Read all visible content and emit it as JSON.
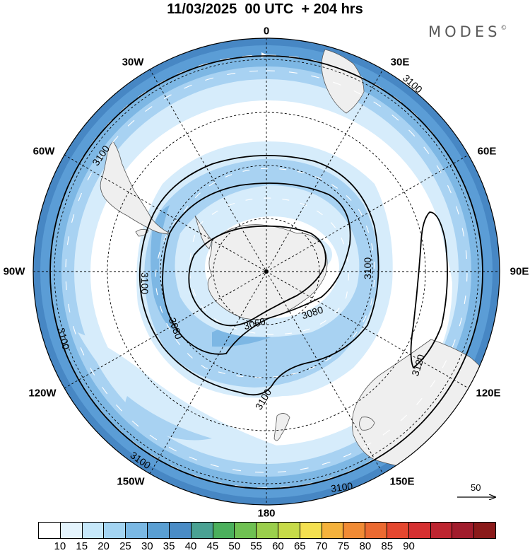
{
  "title": "11/03/2025  00 UTC  + 204 hrs",
  "brand": {
    "text": "MODES",
    "mark": "©"
  },
  "longitude_labels": [
    "0",
    "30E",
    "60E",
    "90E",
    "120E",
    "150E",
    "180",
    "150W",
    "120W",
    "90W",
    "60W",
    "30W"
  ],
  "contour_labels": [
    "3100",
    "3100",
    "3100",
    "3100",
    "3100",
    "3100",
    "3100",
    "3100",
    "3100",
    "3080",
    "3080",
    "3060",
    "3120"
  ],
  "reference_vector": {
    "label": "50"
  },
  "colorbar": {
    "colors": [
      "#ffffff",
      "#e4f4fd",
      "#c6e8fa",
      "#a3d4f2",
      "#7ab8e4",
      "#5a9fd3",
      "#4a8cc6",
      "#4aa293",
      "#4bb05c",
      "#6fc152",
      "#9bcf4c",
      "#c7db49",
      "#f4e050",
      "#f5b23c",
      "#f18b35",
      "#ec6a31",
      "#e5472f",
      "#d63031",
      "#be2530",
      "#a11c2c",
      "#8b1a1a"
    ],
    "tick_labels": [
      "10",
      "15",
      "20",
      "25",
      "30",
      "35",
      "40",
      "45",
      "50",
      "55",
      "60",
      "65",
      "70",
      "75",
      "80",
      "85",
      "90"
    ]
  },
  "colors": {
    "land": "#efefef",
    "coast": "#555555",
    "contour": "#000000",
    "grid": "#000000",
    "wind_light": "#d6ecfb",
    "wind_medium": "#a8d2f2",
    "wind_strong": "#7db7e4",
    "wind_stronger": "#5b9dd6",
    "wind_max": "#4787c4"
  }
}
